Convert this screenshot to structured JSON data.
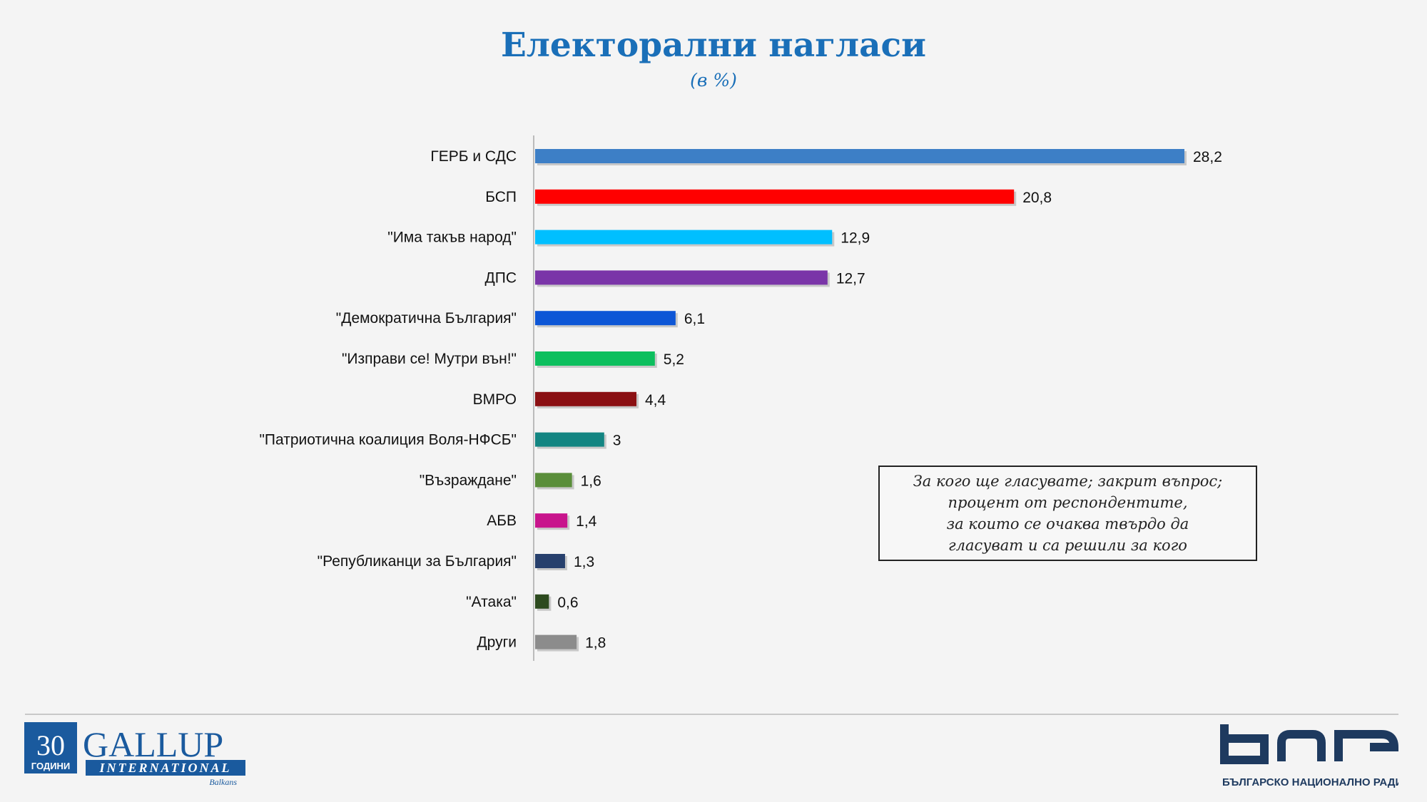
{
  "title": "Електорални нагласи",
  "subtitle": "(в %)",
  "note": [
    "За кого ще гласувате; закрит въпрос;",
    "процент от респондентите,",
    "за които се очаква твърдо да",
    "гласуват и са решили за кого"
  ],
  "chart_data": {
    "type": "bar",
    "orientation": "horizontal",
    "categories": [
      "ГЕРБ и СДС",
      "БСП",
      "\"Има такъв народ\"",
      "ДПС",
      "\"Демократична България\"",
      "\"Изправи се! Мутри вън!\"",
      "ВМРО",
      "\"Патриотична коалиция Воля-НФСБ\"",
      "\"Възраждане\"",
      "АБВ",
      "\"Републиканци за България\"",
      "\"Атака\"",
      "Други"
    ],
    "values": [
      28.2,
      20.8,
      12.9,
      12.7,
      6.1,
      5.2,
      4.4,
      3,
      1.6,
      1.4,
      1.3,
      0.6,
      1.8
    ],
    "value_labels": [
      "28,2",
      "20,8",
      "12,9",
      "12,7",
      "6,1",
      "5,2",
      "4,4",
      "3",
      "1,6",
      "1,4",
      "1,3",
      "0,6",
      "1,8"
    ],
    "colors": [
      "#3d7fc6",
      "#ff0000",
      "#00bfff",
      "#7a35a8",
      "#0d56d6",
      "#0dbf5e",
      "#8b1013",
      "#138582",
      "#5a8e3a",
      "#c8148c",
      "#27406d",
      "#2c4a1e",
      "#8c8c8c"
    ],
    "xlabel": "",
    "ylabel": "",
    "xlim": [
      0,
      28.2
    ],
    "grid": false,
    "legend": "none"
  },
  "logos": {
    "gallup": {
      "years": "30",
      "years_label": "ГОДИНИ",
      "name": "GALLUP",
      "subname": "INTERNATIONAL",
      "region": "Balkans",
      "color": "#1a5a9e"
    },
    "bnr": {
      "tagline": "БЪЛГАРСКО НАЦИОНАЛНО РАДИО",
      "color": "#1e3a5f"
    }
  }
}
